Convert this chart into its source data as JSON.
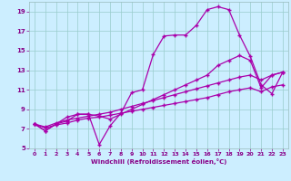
{
  "xlabel": "Windchill (Refroidissement éolien,°C)",
  "bg_color": "#cceeff",
  "line_color": "#aa00aa",
  "xlim": [
    -0.5,
    23.5
  ],
  "ylim": [
    5,
    20
  ],
  "yticks": [
    5,
    7,
    9,
    11,
    13,
    15,
    17,
    19
  ],
  "xticks": [
    0,
    1,
    2,
    3,
    4,
    5,
    6,
    7,
    8,
    9,
    10,
    11,
    12,
    13,
    14,
    15,
    16,
    17,
    18,
    19,
    20,
    21,
    22,
    23
  ],
  "line1_x": [
    0,
    1,
    2,
    3,
    4,
    5,
    6,
    7,
    8,
    9,
    10,
    11,
    12,
    13,
    14,
    15,
    16,
    17,
    18,
    19,
    20,
    21,
    22,
    23
  ],
  "line1_y": [
    7.5,
    6.8,
    7.5,
    8.2,
    8.5,
    8.5,
    5.4,
    7.3,
    8.6,
    10.7,
    11.0,
    14.6,
    16.5,
    16.6,
    16.6,
    17.6,
    19.2,
    19.5,
    19.2,
    16.6,
    14.4,
    11.5,
    10.6,
    12.8
  ],
  "line2_x": [
    0,
    1,
    2,
    3,
    4,
    5,
    6,
    7,
    8,
    9,
    10,
    11,
    12,
    13,
    14,
    15,
    16,
    17,
    18,
    19,
    20,
    21,
    22,
    23
  ],
  "line2_y": [
    7.5,
    6.8,
    7.5,
    7.8,
    8.5,
    8.5,
    8.3,
    8.0,
    8.5,
    9.0,
    9.5,
    10.0,
    10.5,
    11.0,
    11.5,
    12.0,
    12.5,
    13.5,
    14.0,
    14.5,
    14.0,
    11.2,
    12.5,
    12.8
  ],
  "line3_x": [
    0,
    1,
    2,
    3,
    4,
    5,
    6,
    7,
    8,
    9,
    10,
    11,
    12,
    13,
    14,
    15,
    16,
    17,
    18,
    19,
    20,
    21,
    22,
    23
  ],
  "line3_y": [
    7.5,
    7.2,
    7.6,
    7.9,
    8.1,
    8.3,
    8.5,
    8.7,
    9.0,
    9.3,
    9.6,
    9.9,
    10.2,
    10.5,
    10.8,
    11.1,
    11.4,
    11.7,
    12.0,
    12.3,
    12.5,
    12.0,
    12.5,
    12.8
  ],
  "line4_x": [
    0,
    1,
    2,
    3,
    4,
    5,
    6,
    7,
    8,
    9,
    10,
    11,
    12,
    13,
    14,
    15,
    16,
    17,
    18,
    19,
    20,
    21,
    22,
    23
  ],
  "line4_y": [
    7.5,
    7.1,
    7.4,
    7.6,
    7.9,
    8.1,
    8.2,
    8.4,
    8.6,
    8.8,
    9.0,
    9.2,
    9.4,
    9.6,
    9.8,
    10.0,
    10.2,
    10.5,
    10.8,
    11.0,
    11.2,
    10.8,
    11.3,
    11.5
  ]
}
